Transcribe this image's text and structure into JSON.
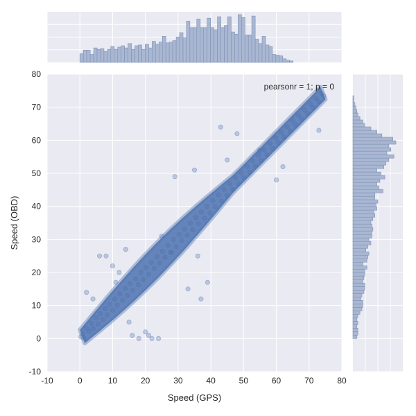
{
  "chart_data": {
    "type": "scatter",
    "title": "",
    "xlabel": "Speed (GPS)",
    "ylabel": "Speed (OBD)",
    "xlim": [
      -10,
      80
    ],
    "ylim": [
      -10,
      80
    ],
    "xticks": [
      -10,
      0,
      10,
      20,
      30,
      40,
      50,
      60,
      70,
      80
    ],
    "yticks": [
      -10,
      0,
      10,
      20,
      30,
      40,
      50,
      60,
      70,
      80
    ],
    "grid": true,
    "annotation": "pearsonr = 1; p = 0",
    "point_color": "#4c72b0",
    "background_color": "#eaeaf2",
    "trend": {
      "slope": 1.0,
      "intercept": 0.0,
      "x_range": [
        0,
        75
      ],
      "spread_sd": 2.2
    },
    "points": [
      [
        0.3,
        0.5
      ],
      [
        0.8,
        1.4
      ],
      [
        1.2,
        0.2
      ],
      [
        2.0,
        3.1
      ],
      [
        2.8,
        2.2
      ],
      [
        3.5,
        4.6
      ],
      [
        4.1,
        3.0
      ],
      [
        5.0,
        6.2
      ],
      [
        5.6,
        4.4
      ],
      [
        6.3,
        7.5
      ],
      [
        7.0,
        5.8
      ],
      [
        7.8,
        9.0
      ],
      [
        8.4,
        7.2
      ],
      [
        9.1,
        10.3
      ],
      [
        10.0,
        8.6
      ],
      [
        10.6,
        12.0
      ],
      [
        11.4,
        10.1
      ],
      [
        12.2,
        13.5
      ],
      [
        13.0,
        11.6
      ],
      [
        13.8,
        15.2
      ],
      [
        14.5,
        13.0
      ],
      [
        15.3,
        16.7
      ],
      [
        16.1,
        14.6
      ],
      [
        17.0,
        18.1
      ],
      [
        17.8,
        16.3
      ],
      [
        18.6,
        19.9
      ],
      [
        19.4,
        17.8
      ],
      [
        20.2,
        21.5
      ],
      [
        21.0,
        19.5
      ],
      [
        21.9,
        23.0
      ],
      [
        22.7,
        21.2
      ],
      [
        23.5,
        24.8
      ],
      [
        24.3,
        22.9
      ],
      [
        25.2,
        26.4
      ],
      [
        26.0,
        24.6
      ],
      [
        26.9,
        28.2
      ],
      [
        27.7,
        26.1
      ],
      [
        28.6,
        29.9
      ],
      [
        29.4,
        27.8
      ],
      [
        30.3,
        31.5
      ],
      [
        31.1,
        29.6
      ],
      [
        32.0,
        33.2
      ],
      [
        32.8,
        31.3
      ],
      [
        33.7,
        34.9
      ],
      [
        34.5,
        32.9
      ],
      [
        35.4,
        36.6
      ],
      [
        36.2,
        34.7
      ],
      [
        37.1,
        38.3
      ],
      [
        38.0,
        36.4
      ],
      [
        38.8,
        40.0
      ],
      [
        39.7,
        38.0
      ],
      [
        40.6,
        41.8
      ],
      [
        41.4,
        39.9
      ],
      [
        42.3,
        43.5
      ],
      [
        43.2,
        41.6
      ],
      [
        44.0,
        45.1
      ],
      [
        44.9,
        43.4
      ],
      [
        45.8,
        46.9
      ],
      [
        46.6,
        45.1
      ],
      [
        47.5,
        48.6
      ],
      [
        48.4,
        46.9
      ],
      [
        49.2,
        50.3
      ],
      [
        50.1,
        48.7
      ],
      [
        51.0,
        52.1
      ],
      [
        51.9,
        50.4
      ],
      [
        52.7,
        53.8
      ],
      [
        53.6,
        52.2
      ],
      [
        54.5,
        55.5
      ],
      [
        55.4,
        53.9
      ],
      [
        56.2,
        57.2
      ],
      [
        57.1,
        55.7
      ],
      [
        58.0,
        59.0
      ],
      [
        58.9,
        57.5
      ],
      [
        59.8,
        60.7
      ],
      [
        60.6,
        59.3
      ],
      [
        61.5,
        62.4
      ],
      [
        62.4,
        61.0
      ],
      [
        63.3,
        64.1
      ],
      [
        64.2,
        62.8
      ],
      [
        65.0,
        65.9
      ],
      [
        65.9,
        64.6
      ],
      [
        66.8,
        67.6
      ],
      [
        67.7,
        66.4
      ],
      [
        68.6,
        69.3
      ],
      [
        69.5,
        68.1
      ],
      [
        70.4,
        71.0
      ],
      [
        71.2,
        69.9
      ],
      [
        72.1,
        72.6
      ],
      [
        73.0,
        71.7
      ],
      [
        73.8,
        74.2
      ],
      [
        74.5,
        73.4
      ],
      [
        6,
        25
      ],
      [
        8,
        25
      ],
      [
        10,
        22
      ],
      [
        11,
        17
      ],
      [
        15,
        5
      ],
      [
        16,
        1
      ],
      [
        18,
        0
      ],
      [
        20,
        2
      ],
      [
        21,
        1
      ],
      [
        22,
        0
      ],
      [
        24,
        0
      ],
      [
        14,
        27
      ],
      [
        25,
        31
      ],
      [
        28,
        26
      ],
      [
        36,
        25
      ],
      [
        37,
        12
      ],
      [
        39,
        17
      ],
      [
        29,
        49
      ],
      [
        35,
        51
      ],
      [
        48,
        62
      ],
      [
        55,
        57
      ],
      [
        62,
        52
      ],
      [
        60,
        48
      ],
      [
        73,
        63
      ],
      [
        43,
        64
      ],
      [
        12,
        20
      ],
      [
        33,
        15
      ],
      [
        2,
        14
      ],
      [
        4,
        12
      ],
      [
        45,
        54
      ]
    ],
    "marginal_x": {
      "bin_width": 1.05,
      "start": 0,
      "counts": [
        12,
        17,
        17,
        11,
        20,
        18,
        19,
        15,
        18,
        22,
        18,
        21,
        23,
        20,
        26,
        18,
        23,
        24,
        18,
        25,
        20,
        29,
        25,
        28,
        36,
        27,
        28,
        30,
        35,
        41,
        34,
        57,
        48,
        48,
        60,
        48,
        48,
        61,
        48,
        45,
        63,
        48,
        51,
        63,
        42,
        39,
        66,
        62,
        38,
        38,
        64,
        32,
        26,
        36,
        24,
        22,
        11,
        10,
        9,
        5,
        3,
        2
      ]
    },
    "marginal_y": {
      "bin_width": 1.05,
      "start": 0,
      "counts": [
        4,
        5,
        5,
        4,
        5,
        4,
        5,
        7,
        9,
        10,
        10,
        8,
        9,
        11,
        12,
        12,
        10,
        11,
        12,
        12,
        14,
        10,
        14,
        15,
        16,
        13,
        15,
        18,
        16,
        19,
        19,
        20,
        19,
        18,
        20,
        22,
        21,
        24,
        23,
        25,
        22,
        22,
        30,
        26,
        24,
        27,
        32,
        28,
        24,
        31,
        33,
        36,
        41,
        34,
        38,
        36,
        43,
        40,
        29,
        24,
        18,
        12,
        10,
        7,
        5,
        4,
        3,
        2,
        1,
        1
      ]
    }
  }
}
